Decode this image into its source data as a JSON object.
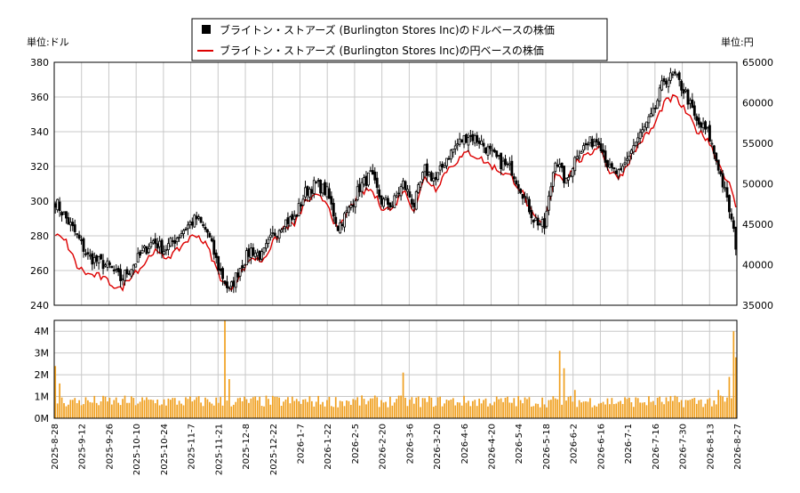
{
  "chart_data": {
    "type": "candlestick+line+bar",
    "legend": {
      "placement": "top-center",
      "entries": [
        {
          "label": "ブライトン・ストアーズ (Burlington Stores Inc)のドルベースの株価",
          "color": "#000000",
          "marker": "square"
        },
        {
          "label": "ブライトン・ストアーズ (Burlington Stores Inc)の円ベースの株価",
          "color": "#dd0000",
          "marker": "line"
        }
      ]
    },
    "left_unit": "単位:ドル",
    "right_unit": "単位:円",
    "price_axis": {
      "min": 240,
      "max": 380,
      "ticks": [
        "380",
        "360",
        "340",
        "320",
        "300",
        "280",
        "260",
        "240"
      ]
    },
    "yen_axis": {
      "min": 35000,
      "max": 65000,
      "ticks": [
        "65000",
        "60000",
        "55000",
        "50000",
        "45000",
        "40000",
        "35000"
      ]
    },
    "volume_axis": {
      "min": 0,
      "max": 4500000,
      "ticks": [
        "4M",
        "3M",
        "2M",
        "1M",
        "0M"
      ]
    },
    "x_tick_labels": [
      "2025-8-28",
      "2025-9-12",
      "2025-9-26",
      "2025-10-10",
      "2025-10-24",
      "2025-11-7",
      "2025-11-21",
      "2025-12-8",
      "2025-12-22",
      "2026-1-7",
      "2026-1-22",
      "2026-2-5",
      "2026-2-20",
      "2026-3-6",
      "2026-3-20",
      "2026-4-6",
      "2026-4-20",
      "2026-5-4",
      "2026-5-18",
      "2026-6-2",
      "2026-6-16",
      "2026-7-1",
      "2026-7-16",
      "2026-7-30",
      "2026-8-13",
      "2026-8-27"
    ],
    "price_anchors": [
      [
        0,
        300
      ],
      [
        5,
        290
      ],
      [
        10,
        280
      ],
      [
        15,
        268
      ],
      [
        20,
        265
      ],
      [
        25,
        262
      ],
      [
        30,
        255
      ],
      [
        35,
        262
      ],
      [
        40,
        270
      ],
      [
        45,
        277
      ],
      [
        50,
        272
      ],
      [
        55,
        278
      ],
      [
        60,
        285
      ],
      [
        65,
        290
      ],
      [
        70,
        282
      ],
      [
        75,
        262
      ],
      [
        80,
        248
      ],
      [
        85,
        262
      ],
      [
        90,
        272
      ],
      [
        95,
        268
      ],
      [
        100,
        280
      ],
      [
        105,
        288
      ],
      [
        110,
        290
      ],
      [
        115,
        305
      ],
      [
        120,
        310
      ],
      [
        125,
        305
      ],
      [
        130,
        285
      ],
      [
        135,
        295
      ],
      [
        140,
        308
      ],
      [
        145,
        315
      ],
      [
        150,
        300
      ],
      [
        155,
        298
      ],
      [
        160,
        310
      ],
      [
        165,
        298
      ],
      [
        170,
        318
      ],
      [
        175,
        312
      ],
      [
        180,
        325
      ],
      [
        185,
        333
      ],
      [
        190,
        338
      ],
      [
        195,
        335
      ],
      [
        200,
        328
      ],
      [
        205,
        322
      ],
      [
        210,
        318
      ],
      [
        215,
        305
      ],
      [
        220,
        290
      ],
      [
        225,
        285
      ],
      [
        230,
        325
      ],
      [
        235,
        310
      ],
      [
        240,
        328
      ],
      [
        245,
        333
      ],
      [
        250,
        336
      ],
      [
        255,
        318
      ],
      [
        260,
        315
      ],
      [
        265,
        330
      ],
      [
        270,
        340
      ],
      [
        275,
        350
      ],
      [
        280,
        370
      ],
      [
        285,
        372
      ],
      [
        290,
        362
      ],
      [
        295,
        345
      ],
      [
        300,
        340
      ],
      [
        305,
        320
      ],
      [
        310,
        295
      ],
      [
        313,
        275
      ]
    ],
    "yen_anchors": [
      [
        0,
        43700
      ],
      [
        5,
        42800
      ],
      [
        10,
        39800
      ],
      [
        15,
        38800
      ],
      [
        20,
        38600
      ],
      [
        25,
        37800
      ],
      [
        30,
        36900
      ],
      [
        35,
        38800
      ],
      [
        40,
        39800
      ],
      [
        45,
        41700
      ],
      [
        50,
        40900
      ],
      [
        55,
        41400
      ],
      [
        60,
        42900
      ],
      [
        65,
        43800
      ],
      [
        70,
        42200
      ],
      [
        75,
        38900
      ],
      [
        80,
        36800
      ],
      [
        85,
        38800
      ],
      [
        90,
        40900
      ],
      [
        95,
        40500
      ],
      [
        100,
        42600
      ],
      [
        105,
        44600
      ],
      [
        110,
        45000
      ],
      [
        115,
        47800
      ],
      [
        120,
        48400
      ],
      [
        125,
        47800
      ],
      [
        130,
        44000
      ],
      [
        135,
        46800
      ],
      [
        140,
        48800
      ],
      [
        145,
        49300
      ],
      [
        150,
        47200
      ],
      [
        155,
        46800
      ],
      [
        160,
        49300
      ],
      [
        165,
        46800
      ],
      [
        170,
        50800
      ],
      [
        175,
        49400
      ],
      [
        180,
        51700
      ],
      [
        185,
        52900
      ],
      [
        190,
        53900
      ],
      [
        195,
        53200
      ],
      [
        200,
        52300
      ],
      [
        205,
        51500
      ],
      [
        210,
        50800
      ],
      [
        215,
        48800
      ],
      [
        220,
        45800
      ],
      [
        225,
        44800
      ],
      [
        230,
        51400
      ],
      [
        235,
        50400
      ],
      [
        240,
        52800
      ],
      [
        245,
        53400
      ],
      [
        250,
        54900
      ],
      [
        255,
        51400
      ],
      [
        260,
        50900
      ],
      [
        265,
        53400
      ],
      [
        270,
        55500
      ],
      [
        275,
        56900
      ],
      [
        280,
        60000
      ],
      [
        285,
        60700
      ],
      [
        290,
        58900
      ],
      [
        295,
        56600
      ],
      [
        300,
        55600
      ],
      [
        305,
        52600
      ],
      [
        310,
        49900
      ],
      [
        313,
        47200
      ]
    ],
    "volume_peaks": [
      [
        0,
        2400000
      ],
      [
        2,
        1600000
      ],
      [
        78,
        4500000
      ],
      [
        80,
        1800000
      ],
      [
        160,
        2100000
      ],
      [
        232,
        3100000
      ],
      [
        234,
        2300000
      ],
      [
        239,
        1300000
      ],
      [
        305,
        1300000
      ],
      [
        310,
        1900000
      ],
      [
        312,
        4000000
      ],
      [
        313,
        2800000
      ]
    ]
  }
}
